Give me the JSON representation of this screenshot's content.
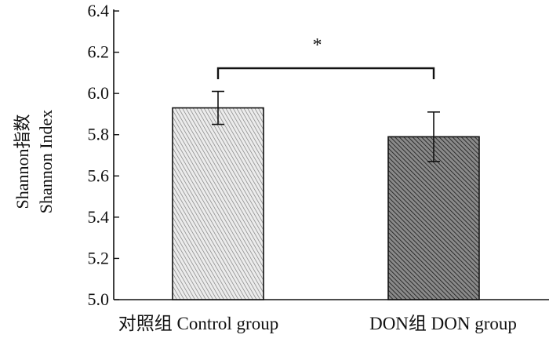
{
  "chart_data": {
    "type": "bar",
    "title": "",
    "ylabel_lines": [
      "Shannon指数",
      "Shannon Index"
    ],
    "xlabel": "",
    "categories": [
      "对照组 Control group",
      "DON组 DON group"
    ],
    "values": [
      5.93,
      5.79
    ],
    "errors": [
      0.08,
      0.12
    ],
    "ylim": [
      5.0,
      6.4
    ],
    "yticks": [
      5.0,
      5.2,
      5.4,
      5.6,
      5.8,
      6.0,
      6.2,
      6.4
    ],
    "ytick_labels": [
      "5.0",
      "5.2",
      "5.4",
      "5.6",
      "5.8",
      "6.0",
      "6.2",
      "6.4"
    ],
    "significance": {
      "between": [
        0,
        1
      ],
      "label": "*"
    },
    "bar_styles": [
      {
        "fill": "#e6e6e6",
        "hatch": "light-diagonal",
        "stroke": "#111111"
      },
      {
        "fill": "#555555",
        "hatch": "dark-diagonal",
        "stroke": "#111111"
      }
    ],
    "grid": false,
    "legend": false
  }
}
